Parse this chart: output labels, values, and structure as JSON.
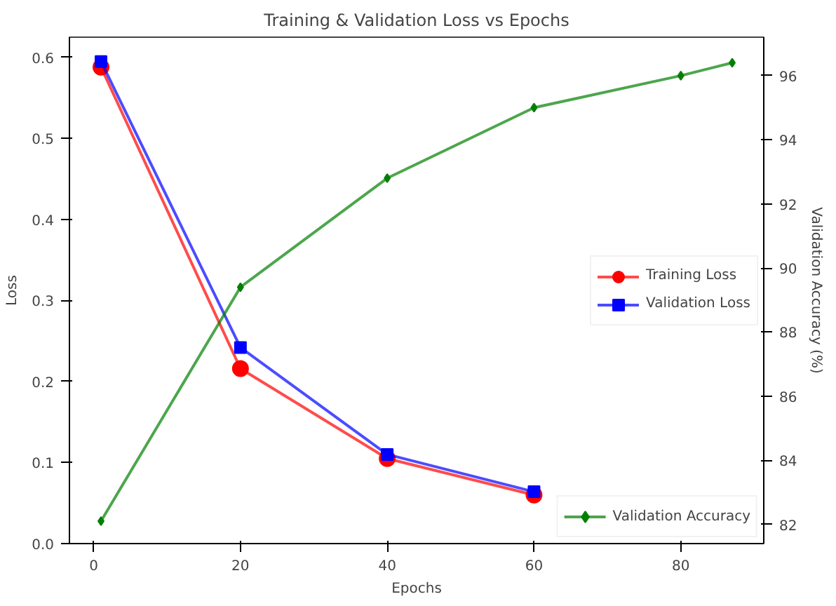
{
  "chart_data": {
    "type": "line",
    "title": "Training & Validation Loss vs Epochs",
    "xlabel": "Epochs",
    "ylabel": "Loss",
    "y2label": "Validation Accuracy (%)",
    "x": [
      1,
      20,
      40,
      60,
      80,
      87
    ],
    "series": [
      {
        "name": "Training Loss",
        "color": "#ff0000",
        "marker": "circle",
        "values": [
          0.588,
          0.216,
          0.105,
          0.06,
          null,
          null
        ]
      },
      {
        "name": "Validation Loss",
        "color": "#0000ff",
        "marker": "square",
        "values": [
          0.595,
          0.242,
          0.11,
          0.064,
          null,
          null
        ]
      },
      {
        "name": "Validation Accuracy",
        "color": "#008000",
        "marker": "diamond",
        "axis": "y2",
        "values": [
          82.1,
          89.4,
          92.8,
          95.0,
          96.0,
          96.4
        ]
      }
    ],
    "xlim": [
      -3.3,
      91.3
    ],
    "xticks": [
      0,
      20,
      40,
      60,
      80
    ],
    "ylim": [
      0,
      0.625
    ],
    "yticks": [
      {
        "value": 0,
        "label": "0.0"
      },
      0.1,
      0.2,
      0.3,
      0.4,
      0.5,
      0.6
    ],
    "y2lim": [
      81.4,
      97.2
    ],
    "y2ticks": [
      82,
      84,
      86,
      88,
      90,
      92,
      94,
      96
    ],
    "grid": false,
    "legend": "center right",
    "line_style": "solid"
  }
}
